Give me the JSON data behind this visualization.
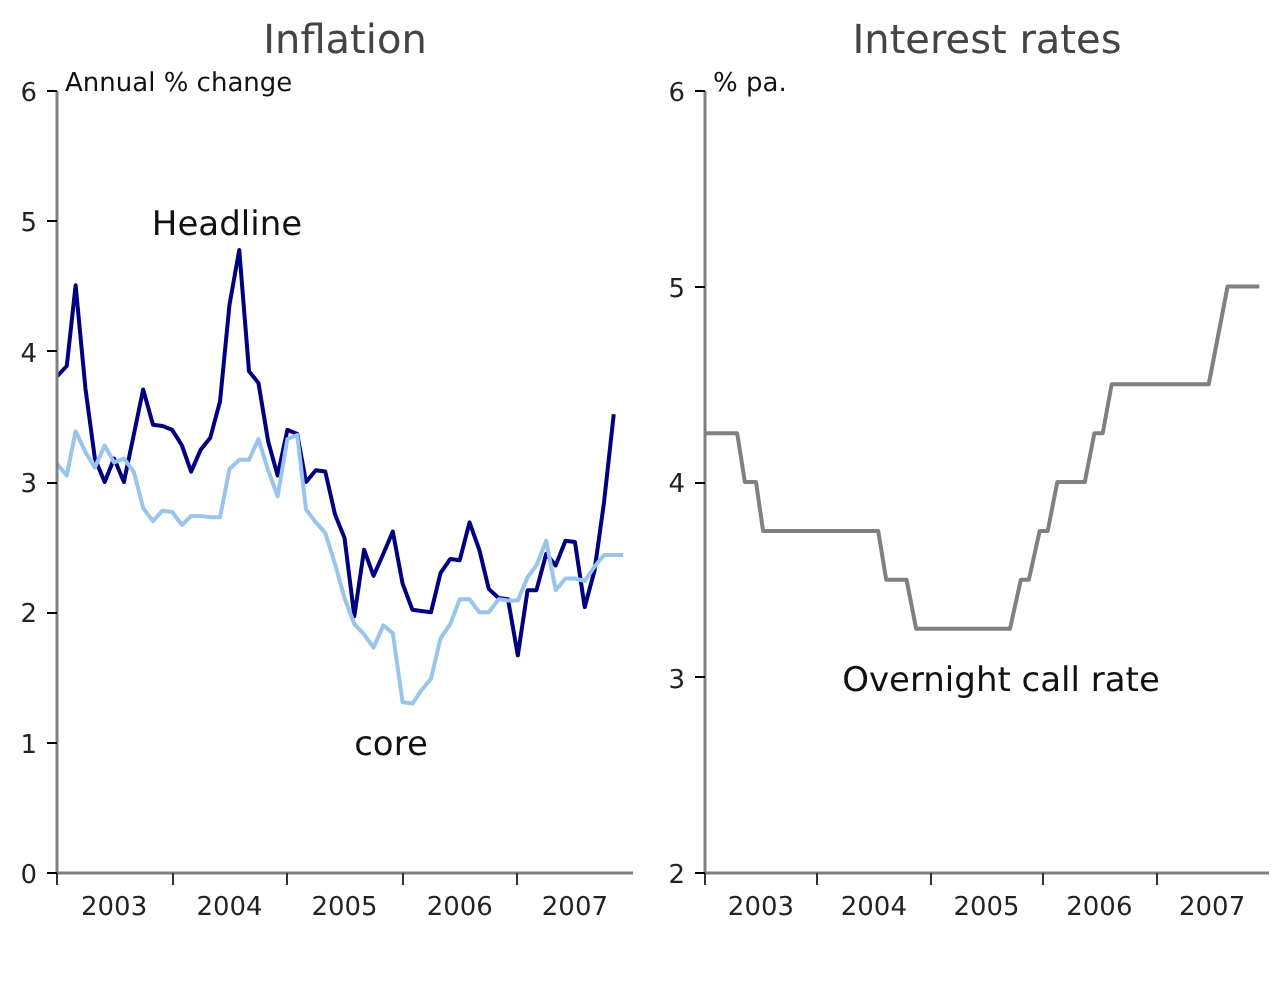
{
  "chart_data": [
    {
      "type": "line",
      "title": "Inflation",
      "ylabel": "Annual % change",
      "grid": false,
      "legend": false,
      "xlim": [
        "2003",
        "2008"
      ],
      "ylim": [
        0,
        6
      ],
      "yticks": [
        0,
        1,
        2,
        3,
        4,
        5,
        6
      ],
      "xticks": [
        {
          "value": "2003",
          "label": null
        },
        {
          "value": "2003-07",
          "label": "2003"
        },
        {
          "value": "2004",
          "label": null
        },
        {
          "value": "2004-07",
          "label": "2004"
        },
        {
          "value": "2005",
          "label": null
        },
        {
          "value": "2005-07",
          "label": "2005"
        },
        {
          "value": "2006",
          "label": null
        },
        {
          "value": "2006-07",
          "label": "2006"
        },
        {
          "value": "2007",
          "label": null
        },
        {
          "value": "2007-07",
          "label": "2007"
        }
      ],
      "series": [
        {
          "name": "Headline",
          "color": "#000080",
          "x": [
            "2003-01",
            "2003-02",
            "2003-03",
            "2003-04",
            "2003-05",
            "2003-06",
            "2003-07",
            "2003-08",
            "2003-09",
            "2003-10",
            "2003-11",
            "2003-12",
            "2004-01",
            "2004-02",
            "2004-03",
            "2004-04",
            "2004-05",
            "2004-06",
            "2004-07",
            "2004-08",
            "2004-09",
            "2004-10",
            "2004-11",
            "2004-12",
            "2005-01",
            "2005-02",
            "2005-03",
            "2005-04",
            "2005-05",
            "2005-06",
            "2005-07",
            "2005-08",
            "2005-09",
            "2005-10",
            "2005-11",
            "2005-12",
            "2006-01",
            "2006-02",
            "2006-03",
            "2006-04",
            "2006-05",
            "2006-06",
            "2006-07",
            "2006-08",
            "2006-09",
            "2006-10",
            "2006-11",
            "2006-12",
            "2007-01",
            "2007-02",
            "2007-03",
            "2007-04",
            "2007-05",
            "2007-06",
            "2007-07",
            "2007-08",
            "2007-09",
            "2007-10",
            "2007-11"
          ],
          "values": [
            3.81,
            3.89,
            4.51,
            3.72,
            3.18,
            3.0,
            3.18,
            3.0,
            3.36,
            3.71,
            3.44,
            3.43,
            3.4,
            3.28,
            3.08,
            3.25,
            3.34,
            3.62,
            4.36,
            4.78,
            3.85,
            3.76,
            3.31,
            3.05,
            3.4,
            3.37,
            3.0,
            3.09,
            3.08,
            2.75,
            2.57,
            1.97,
            2.48,
            2.28,
            2.45,
            2.62,
            2.22,
            2.02,
            2.01,
            2.0,
            2.3,
            2.41,
            2.4,
            2.69,
            2.48,
            2.18,
            2.11,
            2.1,
            1.67,
            2.17,
            2.17,
            2.45,
            2.36,
            2.55,
            2.54,
            2.04,
            2.32,
            2.84,
            3.52
          ]
        },
        {
          "name": "core",
          "color": "#99c4ee",
          "x": [
            "2003-01",
            "2003-02",
            "2003-03",
            "2003-04",
            "2003-05",
            "2003-06",
            "2003-07",
            "2003-08",
            "2003-09",
            "2003-10",
            "2003-11",
            "2003-12",
            "2004-01",
            "2004-02",
            "2004-03",
            "2004-04",
            "2004-05",
            "2004-06",
            "2004-07",
            "2004-08",
            "2004-09",
            "2004-10",
            "2004-11",
            "2004-12",
            "2005-01",
            "2005-02",
            "2005-03",
            "2005-04",
            "2005-05",
            "2005-06",
            "2005-07",
            "2005-08",
            "2005-09",
            "2005-10",
            "2005-11",
            "2005-12",
            "2006-01",
            "2006-02",
            "2006-03",
            "2006-04",
            "2006-05",
            "2006-06",
            "2006-07",
            "2006-08",
            "2006-09",
            "2006-10",
            "2006-11",
            "2006-12",
            "2007-01",
            "2007-02",
            "2007-03",
            "2007-04",
            "2007-05",
            "2007-06",
            "2007-07",
            "2007-08",
            "2007-09",
            "2007-10",
            "2007-11",
            "2007-12"
          ],
          "values": [
            3.14,
            3.05,
            3.39,
            3.23,
            3.11,
            3.28,
            3.15,
            3.18,
            3.08,
            2.8,
            2.7,
            2.78,
            2.77,
            2.67,
            2.74,
            2.74,
            2.73,
            2.73,
            3.1,
            3.17,
            3.17,
            3.33,
            3.09,
            2.89,
            3.33,
            3.36,
            2.79,
            2.69,
            2.61,
            2.37,
            2.11,
            1.91,
            1.83,
            1.73,
            1.9,
            1.84,
            1.31,
            1.3,
            1.4,
            1.49,
            1.8,
            1.91,
            2.1,
            2.1,
            2.0,
            2.0,
            2.1,
            2.09,
            2.09,
            2.27,
            2.36,
            2.55,
            2.17,
            2.26,
            2.26,
            2.24,
            2.35,
            2.44,
            2.44,
            2.44
          ]
        }
      ]
    },
    {
      "type": "line",
      "title": "Interest rates",
      "ylabel": "% pa.",
      "grid": false,
      "legend": false,
      "xlim": [
        "2003",
        "2008"
      ],
      "ylim": [
        2,
        6
      ],
      "yticks": [
        2,
        3,
        4,
        5,
        6
      ],
      "xticks": [
        {
          "value": "2003",
          "label": null
        },
        {
          "value": "2003-07",
          "label": "2003"
        },
        {
          "value": "2004",
          "label": null
        },
        {
          "value": "2004-07",
          "label": "2004"
        },
        {
          "value": "2005",
          "label": null
        },
        {
          "value": "2005-07",
          "label": "2005"
        },
        {
          "value": "2006",
          "label": null
        },
        {
          "value": "2006-07",
          "label": "2006"
        },
        {
          "value": "2007",
          "label": null
        },
        {
          "value": "2007-07",
          "label": "2007"
        }
      ],
      "series": [
        {
          "name": "Overnight call rate",
          "color": "#808080",
          "x": [
            "2003-01",
            "2003-04-15",
            "2003-05-10",
            "2003-06-15",
            "2003-07-08",
            "2004-07-15",
            "2004-08-10",
            "2004-10-15",
            "2004-11-15",
            "2005-09-15",
            "2005-10-20",
            "2005-11-15",
            "2005-12-20",
            "2006-01-15",
            "2006-02-15",
            "2006-05-15",
            "2006-06-15",
            "2006-07-12",
            "2006-08-10",
            "2007-06-20",
            "2007-08-20",
            "2007-12-01"
          ],
          "values": [
            4.25,
            4.25,
            4.0,
            4.0,
            3.75,
            3.75,
            3.5,
            3.5,
            3.25,
            3.25,
            3.5,
            3.5,
            3.75,
            3.75,
            4.0,
            4.0,
            4.25,
            4.25,
            4.5,
            4.5,
            5.0,
            5.0
          ]
        }
      ]
    }
  ]
}
